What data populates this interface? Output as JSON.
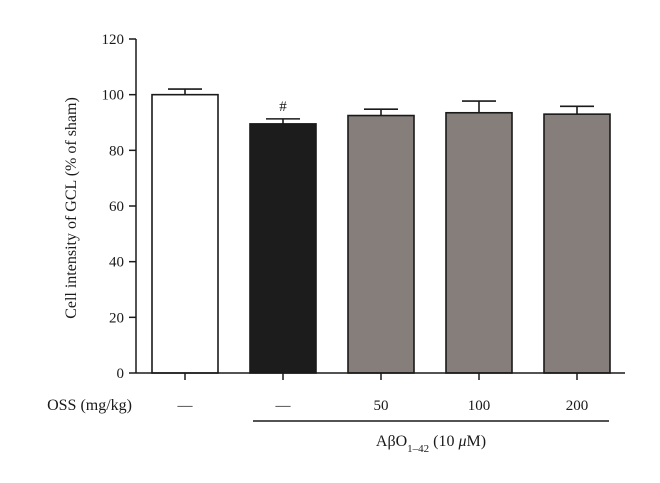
{
  "chart_data": {
    "type": "bar",
    "ylabel": "Cell intensity of GCL (% of sham)",
    "ylim": [
      0,
      120
    ],
    "yticks": [
      0,
      20,
      40,
      60,
      80,
      100,
      120
    ],
    "x_row_label": "OSS (mg/kg)",
    "categories": [
      "—",
      "—",
      "50",
      "100",
      "200"
    ],
    "values": [
      100,
      89.5,
      92.5,
      93.5,
      93
    ],
    "errors": [
      2,
      1.8,
      2.3,
      4.2,
      2.8
    ],
    "bar_colors": [
      "#ffffff",
      "#1c1c1c",
      "#857e7a",
      "#857e7a",
      "#857e7a"
    ],
    "annotations": [
      {
        "category_index": 1,
        "text": "#"
      }
    ],
    "group_label": {
      "text_prefix": "Aβ",
      "text_main": "O",
      "subscript": "1–42",
      "suffix_open": " (10 ",
      "mu": "μ",
      "suffix_unit": "M)",
      "spans_categories": [
        1,
        4
      ]
    },
    "grid": false,
    "legend": "none"
  }
}
